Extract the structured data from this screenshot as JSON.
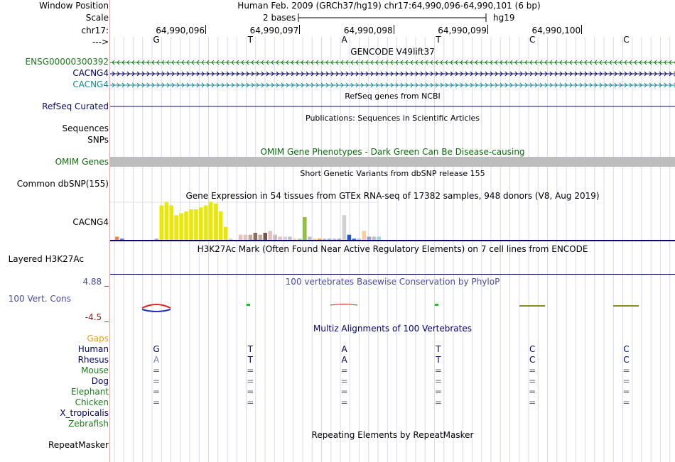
{
  "header": {
    "position_label": "Window Position",
    "position_text": "Human Feb. 2009 (GRCh37/hg19)   chr17:64,990,096-64,990,101 (6 bp)",
    "scale_label": "Scale",
    "scale_text": "2 bases",
    "scale_db": "hg19",
    "chrom_label": "chr17:",
    "coordinates": [
      "64,990,096",
      "64,990,097",
      "64,990,098",
      "64,990,099",
      "64,990,100"
    ],
    "strand_label": "--->",
    "bases": [
      "G",
      "T",
      "A",
      "T",
      "C",
      "C"
    ]
  },
  "tracks": {
    "gencode": {
      "title": "GENCODE V49lift37",
      "rows": [
        {
          "label": "ENSG00000300392",
          "color": "#1a7a1a",
          "arrow": "<"
        },
        {
          "label": "CACNG4",
          "color": "#000066",
          "arrow": ">"
        },
        {
          "label": "CACNG4",
          "color": "#13899e",
          "arrow": ">"
        }
      ]
    },
    "refseq": {
      "title": "RefSeq genes from NCBI",
      "label": "RefSeq Curated",
      "color": "#0a0a6e"
    },
    "publications": {
      "title": "Publications: Sequences in Scientific Articles",
      "labels": [
        "Sequences",
        "SNPs"
      ]
    },
    "omim": {
      "title": "OMIM Gene Phenotypes - Dark Green Can Be Disease-causing",
      "label": "OMIM Genes",
      "color": "#0b6b0b"
    },
    "dbsnp": {
      "title": "Short Genetic Variants from dbSNP release 155",
      "label": "Common dbSNP(155)"
    },
    "gtex": {
      "title": "Gene Expression in 54 tissues from GTEx RNA-seq of 17382 samples, 948 donors (V8, Aug 2019)",
      "label": "CACNG4"
    },
    "h3k27ac": {
      "title": "H3K27Ac Mark (Often Found Near Active Regulatory Elements) on 7 cell lines from ENCODE",
      "label": "Layered H3K27Ac"
    },
    "conservation": {
      "title": "100 vertebrates Basewise Conservation by PhyloP",
      "label": "100 Vert. Cons",
      "max_label": "4.88 _",
      "min_label": "-4.5 _"
    },
    "multiz": {
      "title": "Multiz Alignments of 100 Vertebrates",
      "gaps_label": "Gaps",
      "species": [
        {
          "name": "Human",
          "color": "#000066",
          "bases": [
            "G",
            "T",
            "A",
            "T",
            "C",
            "C"
          ]
        },
        {
          "name": "Rhesus",
          "color": "#000066",
          "bases": [
            "A",
            "T",
            "A",
            "T",
            "C",
            "C"
          ]
        },
        {
          "name": "Mouse",
          "color": "#1a7a1a",
          "bases": [
            "=",
            "=",
            "=",
            "=",
            "=",
            "="
          ]
        },
        {
          "name": "Dog",
          "color": "#000066",
          "bases": [
            "=",
            "=",
            "=",
            "=",
            "=",
            "="
          ]
        },
        {
          "name": "Elephant",
          "color": "#1a7a1a",
          "bases": [
            "=",
            "=",
            "=",
            "=",
            "=",
            "="
          ]
        },
        {
          "name": "Chicken",
          "color": "#1a7a1a",
          "bases": [
            "=",
            "=",
            "=",
            "=",
            "=",
            "="
          ]
        },
        {
          "name": "X_tropicalis",
          "color": "#000066",
          "bases": []
        },
        {
          "name": "Zebrafish",
          "color": "#1a7a1a",
          "bases": []
        }
      ]
    },
    "repeatmasker": {
      "title": "Repeating Elements by RepeatMasker",
      "label": "RepeatMasker"
    }
  },
  "chart_data": {
    "type": "bar",
    "title": "",
    "values": [
      2,
      1,
      0,
      0,
      0,
      0,
      0,
      0,
      1,
      18,
      20,
      18,
      13,
      14,
      15,
      16,
      16,
      17,
      18,
      20,
      19,
      15,
      7,
      1,
      0,
      3,
      3,
      3,
      4,
      3,
      4,
      5,
      3,
      2,
      2,
      2,
      1,
      1,
      12,
      2,
      1,
      1,
      1,
      1,
      1,
      1,
      13,
      3,
      1,
      1,
      5,
      2,
      2,
      2
    ],
    "colors": [
      "#ef8c3c",
      "#6e6ede",
      "#6e6ede",
      "#9bd4d4",
      "#9bd4d4",
      "#9bd4d4",
      "#9bd4d4",
      "#9bd4d4",
      "#b0b0b0",
      "#e8e800",
      "#e8e800",
      "#e8e800",
      "#e8e800",
      "#e8e800",
      "#e8e800",
      "#e8e800",
      "#e8e800",
      "#e8e800",
      "#e8e800",
      "#e8e800",
      "#e8e800",
      "#e8e800",
      "#e8e800",
      "#d0d0d0",
      "#22c2c2",
      "#e8c0c0",
      "#e8c0c0",
      "#c6a898",
      "#8c6f5c",
      "#c6a898",
      "#6e5a4c",
      "#e8c0c0",
      "#c0c0c0",
      "#e8c0c0",
      "#d4d4d4",
      "#c0c0c0",
      "#ffd0a0",
      "#b0d090",
      "#90c040",
      "#c0c0c0",
      "#ffcc99",
      "#ffa020",
      "#c0c0c0",
      "#b0b0b0",
      "#c0c0c0",
      "#b0b0b0",
      "#d0d0d0",
      "#2255cc",
      "#3366dd",
      "#c0c0c0",
      "#ffcc99",
      "#9999dd",
      "#c0c0c0",
      "#9bd4d4"
    ]
  }
}
